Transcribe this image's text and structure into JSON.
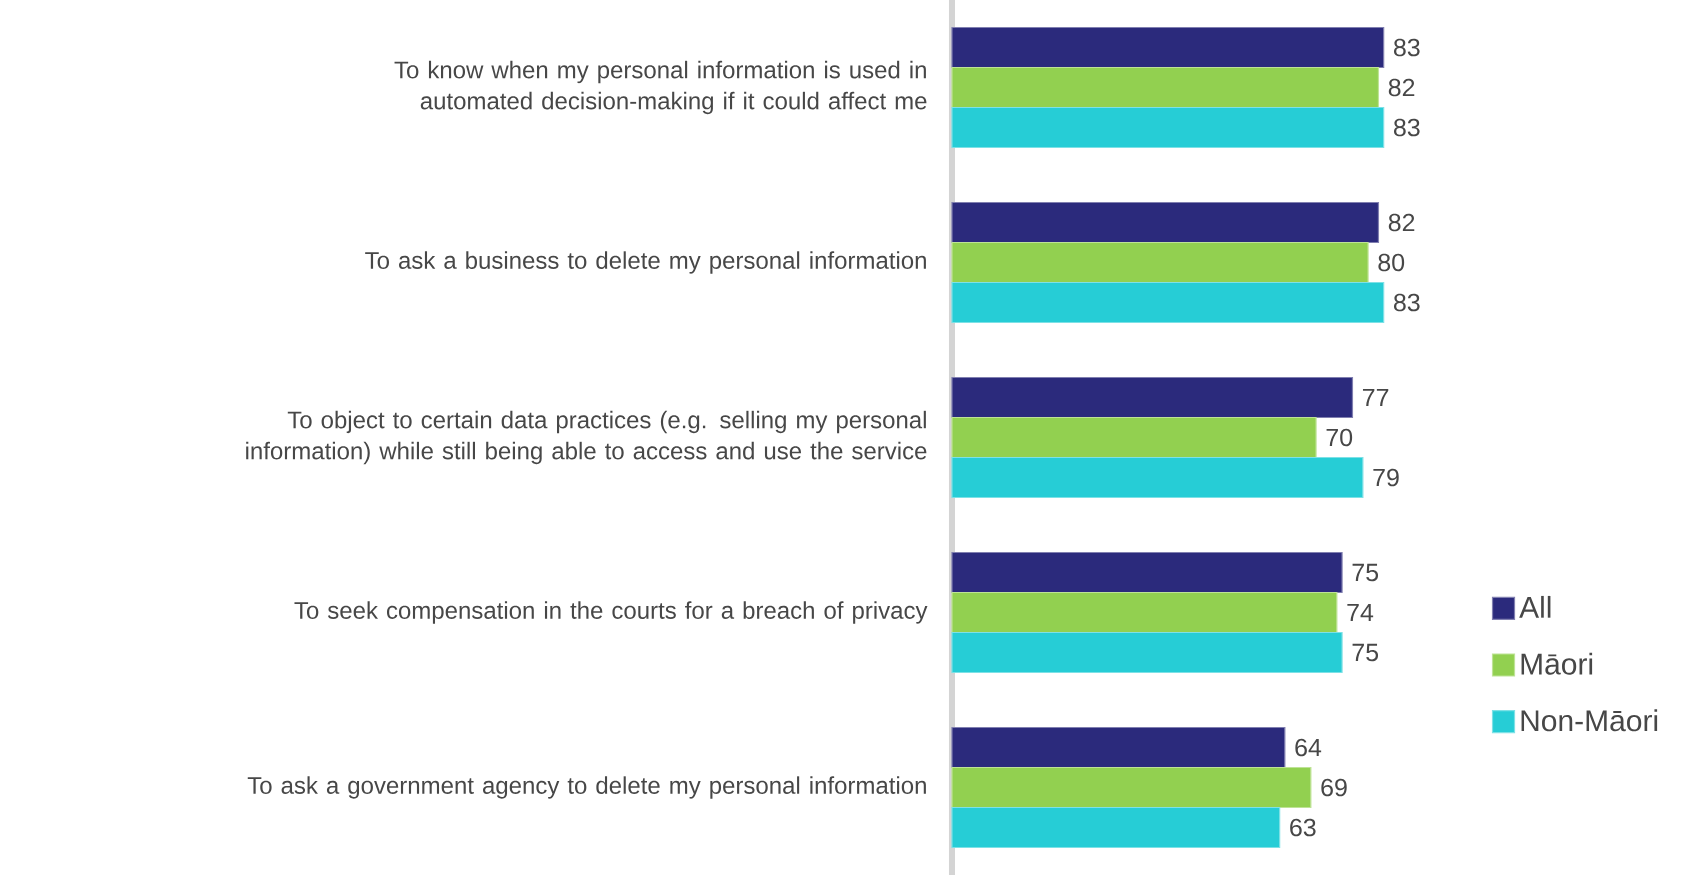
{
  "chart_data": {
    "type": "bar",
    "orientation": "horizontal",
    "categories": [
      "To know when my personal information is used in automated decision-making if it could affect me",
      "To ask a business to delete my personal information",
      "To object to certain data practices (e.g. selling my personal information) while still being able to access and use the service",
      "To seek compensation in the courts for a breach of privacy",
      "To ask a government agency to delete my personal information"
    ],
    "series": [
      {
        "name": "All",
        "color": "#2b2a7c",
        "values": [
          83,
          82,
          77,
          75,
          64
        ]
      },
      {
        "name": "Māori",
        "color": "#92d050",
        "values": [
          82,
          80,
          70,
          74,
          69
        ]
      },
      {
        "name": "Non-Māori",
        "color": "#26cdd6",
        "values": [
          83,
          83,
          79,
          75,
          63
        ]
      }
    ],
    "data_labels": true,
    "legend": "right"
  }
}
